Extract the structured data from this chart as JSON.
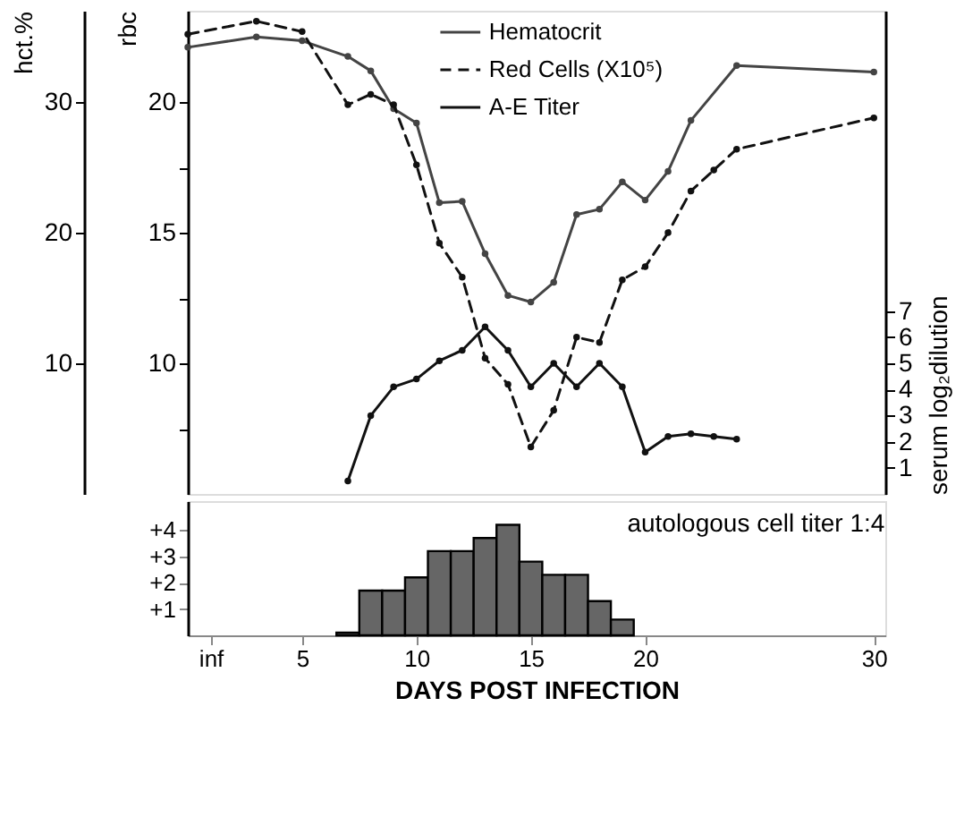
{
  "chart_data": [
    {
      "type": "line",
      "marker": "circle",
      "legend": "top right",
      "grid": false,
      "tick_labels": "y",
      "xlim": [
        0,
        30.5
      ],
      "ylabel": "hct.%",
      "ylim": [
        0,
        37
      ],
      "yticks": [
        10,
        20,
        30
      ],
      "y2label": "rbc",
      "y2lim": [
        5,
        23.5
      ],
      "y2ticks": [
        {
          "value": 7.5,
          "label": null
        },
        10,
        {
          "value": 12.5,
          "label": null
        },
        15,
        {
          "value": 17.5,
          "label": null
        },
        20
      ],
      "y3label": "serum log₂dilution",
      "y3lim": [
        0,
        18.5
      ],
      "y3ticks": [
        1,
        2,
        3,
        4,
        5,
        6,
        7
      ],
      "series": [
        {
          "name": "Hematocrit",
          "color": "#444444",
          "line_style": "solid",
          "axis": "y",
          "x": [
            0,
            3,
            5,
            7,
            8,
            9,
            10,
            11,
            12,
            13,
            14,
            15,
            16,
            17,
            18,
            19,
            20,
            21,
            22,
            24,
            30
          ],
          "values": [
            34.2,
            35.0,
            34.7,
            33.5,
            32.4,
            29.5,
            28.4,
            22.3,
            22.4,
            18.4,
            15.2,
            14.7,
            16.2,
            21.4,
            21.8,
            23.9,
            22.5,
            24.7,
            28.6,
            32.8,
            32.3
          ]
        },
        {
          "name": "Red Cells (X10⁵)",
          "color": "#111111",
          "line_style": "dashed",
          "axis": "y2",
          "x": [
            0,
            3,
            5,
            7,
            8,
            9,
            10,
            11,
            12,
            13,
            14,
            15,
            16,
            17,
            18,
            19,
            20,
            21,
            22,
            23,
            24,
            30
          ],
          "values": [
            22.6,
            23.1,
            22.7,
            19.9,
            20.3,
            19.9,
            17.6,
            14.6,
            13.3,
            10.2,
            9.2,
            6.8,
            8.2,
            11.0,
            10.8,
            13.2,
            13.7,
            15.0,
            16.6,
            17.4,
            18.2,
            19.4
          ]
        },
        {
          "name": "A-E Titer",
          "color": "#111111",
          "line_style": "solid",
          "axis": "y3",
          "x": [
            7,
            8,
            9,
            10,
            11,
            12,
            13,
            14,
            15,
            16,
            17,
            18,
            19,
            20,
            21,
            22,
            23,
            24
          ],
          "values": [
            0.5,
            3.0,
            4.1,
            4.4,
            5.1,
            5.5,
            6.4,
            5.5,
            4.1,
            5.0,
            4.1,
            5.0,
            4.1,
            1.6,
            2.2,
            2.3,
            2.2,
            2.1
          ]
        }
      ]
    },
    {
      "type": "histogram",
      "color": "#666666",
      "grid": false,
      "xlabel": "DAYS POST INFECTION",
      "xlim": [
        0,
        30.5
      ],
      "xticks": [
        {
          "value": 1,
          "label": "inf"
        },
        5,
        10,
        15,
        20,
        30
      ],
      "ylim": [
        0,
        5.1
      ],
      "yticks": [
        {
          "value": 1,
          "label": "+1"
        },
        {
          "value": 2,
          "label": "+2"
        },
        {
          "value": 3,
          "label": "+3"
        },
        {
          "value": 4,
          "label": "+4"
        }
      ],
      "bins": [
        6.5,
        7.5,
        8.5,
        9.5,
        10.5,
        11.5,
        12.5,
        13.5,
        14.5,
        15.5,
        16.5,
        17.5,
        18.5,
        19.5
      ],
      "values": [
        0.1,
        1.7,
        1.7,
        2.2,
        3.2,
        3.2,
        3.7,
        4.2,
        2.8,
        2.3,
        2.3,
        1.3,
        0.6
      ],
      "annotations": [
        "autologous cell titer 1:4"
      ]
    }
  ]
}
